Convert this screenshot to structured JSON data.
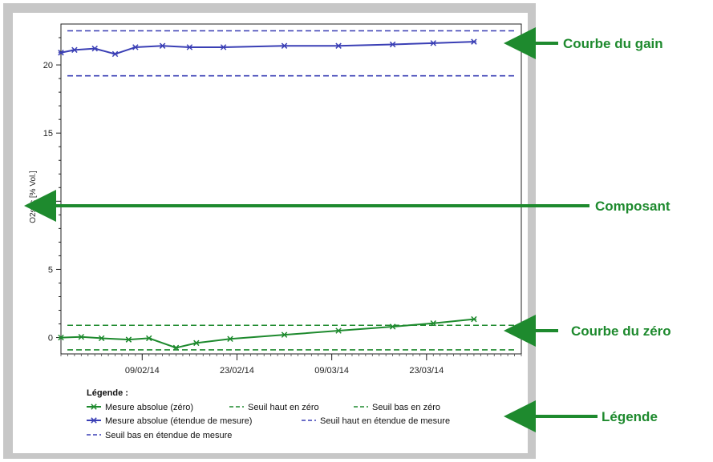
{
  "chart_data": {
    "type": "line",
    "title": "",
    "xlabel": "",
    "ylabel": "O2sec [% Vol.]",
    "ylim": [
      -1.2,
      23
    ],
    "xlim": [
      "2014-01-28",
      "2014-04-06"
    ],
    "yticks": [
      0,
      5,
      10,
      15,
      20
    ],
    "xticks": [
      "09/02/14",
      "23/02/14",
      "09/03/14",
      "23/03/14"
    ],
    "xtick_dates": [
      "2014-02-09",
      "2014-02-23",
      "2014-03-09",
      "2014-03-23"
    ],
    "series": [
      {
        "name": "Mesure absolue (zéro)",
        "color": "#1e8a2e",
        "style": "solid-marker",
        "x": [
          "2014-01-28",
          "2014-01-31",
          "2014-02-03",
          "2014-02-07",
          "2014-02-10",
          "2014-02-14",
          "2014-02-17",
          "2014-02-22",
          "2014-03-02",
          "2014-03-10",
          "2014-03-18",
          "2014-03-24",
          "2014-03-30"
        ],
        "values": [
          0,
          0.05,
          -0.05,
          -0.15,
          -0.05,
          -0.75,
          -0.4,
          -0.1,
          0.2,
          0.5,
          0.8,
          1.05,
          1.35
        ]
      },
      {
        "name": "Seuil haut en zéro",
        "color": "#1e8a2e",
        "style": "dashed",
        "x": [
          "2014-01-28",
          "2014-03-30"
        ],
        "values": [
          0.9,
          0.9
        ]
      },
      {
        "name": "Seuil bas en zéro",
        "color": "#1e8a2e",
        "style": "dashed",
        "x": [
          "2014-01-28",
          "2014-03-30"
        ],
        "values": [
          -0.9,
          -0.9
        ]
      },
      {
        "name": "Mesure absolue (étendue de mesure)",
        "color": "#3a3fb5",
        "style": "solid-marker",
        "x": [
          "2014-01-28",
          "2014-01-30",
          "2014-02-02",
          "2014-02-05",
          "2014-02-08",
          "2014-02-12",
          "2014-02-16",
          "2014-02-21",
          "2014-03-02",
          "2014-03-10",
          "2014-03-18",
          "2014-03-24",
          "2014-03-30"
        ],
        "values": [
          20.9,
          21.1,
          21.2,
          20.8,
          21.3,
          21.4,
          21.3,
          21.3,
          21.4,
          21.4,
          21.5,
          21.6,
          21.7
        ]
      },
      {
        "name": "Seuil haut en étendue de mesure",
        "color": "#3a3fb5",
        "style": "dashed",
        "x": [
          "2014-01-28",
          "2014-03-30"
        ],
        "values": [
          22.5,
          22.5
        ]
      },
      {
        "name": "Seuil bas en étendue de mesure",
        "color": "#3a3fb5",
        "style": "dashed",
        "x": [
          "2014-01-28",
          "2014-03-30"
        ],
        "values": [
          19.2,
          19.2
        ]
      }
    ],
    "legend": {
      "title": "Légende :",
      "placement": "bottom",
      "rows": [
        [
          "Mesure absolue (zéro)",
          "Seuil haut en zéro",
          "Seuil bas en zéro"
        ],
        [
          "Mesure absolue (étendue de mesure)",
          "Seuil haut en étendue de mesure"
        ],
        [
          "Seuil bas en étendue de mesure"
        ]
      ]
    }
  },
  "annotations": [
    {
      "label": "Courbe du gain",
      "target": "gain-curve"
    },
    {
      "label": "Composant",
      "target": "y-axis-label"
    },
    {
      "label": "Courbe du zéro",
      "target": "zero-curve"
    },
    {
      "label": "Légende",
      "target": "legend"
    }
  ],
  "colors": {
    "frame": "#c7c7c7",
    "callout": "#1e8a2e"
  }
}
